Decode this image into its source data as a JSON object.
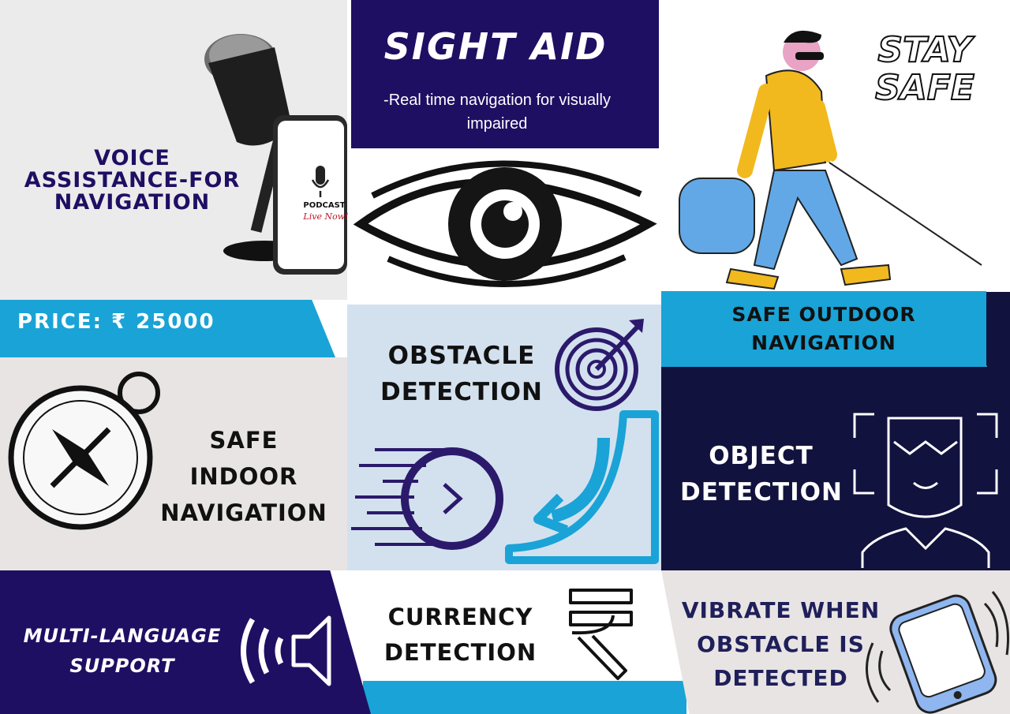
{
  "title": "SIGHT AID",
  "subtitle": "-Real time navigation for visually impaired",
  "stay_safe_line1": "STAY",
  "stay_safe_line2": "SAFE",
  "voice": {
    "line1": "VOICE",
    "line2": "ASSISTANCE-FOR",
    "line3": "NAVIGATION"
  },
  "phone_screen": {
    "label": "PODCAST",
    "tag": "Live Now!"
  },
  "price_label": "PRICE: ₹ 25000",
  "outdoor": {
    "line1": "SAFE OUTDOOR",
    "line2": "NAVIGATION"
  },
  "indoor": {
    "line1": "SAFE",
    "line2": "INDOOR",
    "line3": "NAVIGATION"
  },
  "obstacle": {
    "line1": "OBSTACLE",
    "line2": "DETECTION"
  },
  "object": {
    "line1": "OBJECT",
    "line2": "DETECTION"
  },
  "multilang": {
    "line1": "MULTI-LANGUAGE",
    "line2": "SUPPORT"
  },
  "currency": {
    "line1": "CURRENCY",
    "line2": "DETECTION"
  },
  "vibrate": {
    "line1": "VIBRATE WHEN",
    "line2": "OBSTACLE IS",
    "line3": "DETECTED"
  },
  "colors": {
    "navy": "#1f0f63",
    "dark_navy": "#12123f",
    "cyan": "#1aa3d6",
    "light_blue": "#d3e1ef",
    "light_grey": "#ebebeb",
    "beige": "#e8e4e4"
  }
}
